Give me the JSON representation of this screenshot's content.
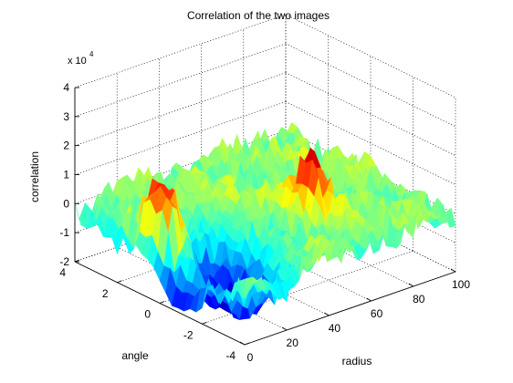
{
  "chart_data": {
    "type": "surface",
    "title": "Correlation of the two images",
    "xlabel": "radius",
    "ylabel": "angle",
    "zlabel": "correlation",
    "z_exponent_label": "x 10",
    "z_exponent_power": "4",
    "xlim": [
      0,
      100
    ],
    "ylim": [
      -4,
      4
    ],
    "zlim": [
      -2,
      4
    ],
    "x_ticks": [
      "0",
      "20",
      "40",
      "60",
      "80",
      "100"
    ],
    "y_ticks": [
      "4",
      "2",
      "0",
      "-2",
      "-4"
    ],
    "z_ticks": [
      "-2",
      "-1",
      "0",
      "1",
      "2",
      "3",
      "4"
    ],
    "grid": true,
    "colormap": [
      "#00008f",
      "#0000ff",
      "#0080ff",
      "#00ffff",
      "#80ff80",
      "#ffff00",
      "#ff8000",
      "#ff0000",
      "#800000"
    ],
    "peaks": [
      {
        "x": 8,
        "y": 0.6,
        "z": 2.1
      },
      {
        "x": 60,
        "y": -1.2,
        "z": 1.75
      },
      {
        "x": 18,
        "y": -1.6,
        "z": -2.3
      }
    ],
    "noise_level": 0.5
  }
}
